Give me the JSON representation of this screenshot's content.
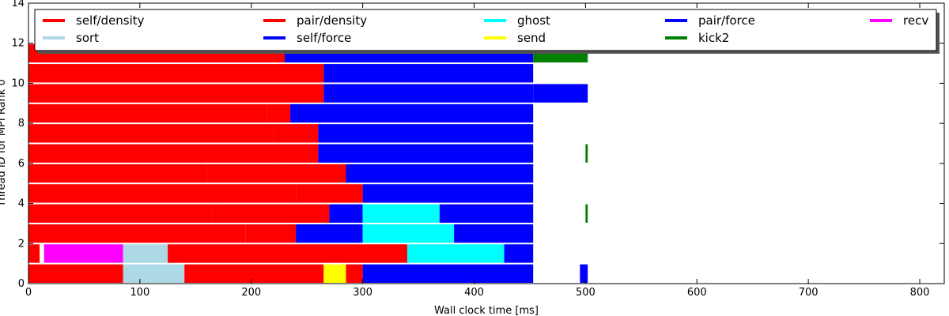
{
  "chart_data": {
    "type": "bar",
    "orientation": "horizontal-timeline",
    "title": "",
    "xlabel": "Wall clock time [ms]",
    "ylabel": "Thread ID for MPI Rank 0",
    "xlim": [
      0,
      822
    ],
    "ylim": [
      0,
      14
    ],
    "xticks": [
      0,
      100,
      200,
      300,
      400,
      500,
      600,
      700,
      800
    ],
    "yticks": [
      0,
      2,
      4,
      6,
      8,
      10,
      12,
      14
    ],
    "grid": false,
    "legend_position": "top",
    "legend": [
      {
        "name": "self/density",
        "color": "#ff0000"
      },
      {
        "name": "sort",
        "color": "#add8e6"
      },
      {
        "name": "pair/density",
        "color": "#ff0000"
      },
      {
        "name": "self/force",
        "color": "#0000ff"
      },
      {
        "name": "ghost",
        "color": "#00ffff"
      },
      {
        "name": "send",
        "color": "#ffff00"
      },
      {
        "name": "pair/force",
        "color": "#0000ff"
      },
      {
        "name": "kick2",
        "color": "#008000"
      },
      {
        "name": "recv",
        "color": "#ff00ff"
      }
    ],
    "threads": [
      {
        "id": 0,
        "segments": [
          {
            "task": "self/density",
            "start": 0,
            "end": 85
          },
          {
            "task": "sort",
            "start": 85,
            "end": 140
          },
          {
            "task": "pair/density",
            "start": 140,
            "end": 265
          },
          {
            "task": "send",
            "start": 265,
            "end": 285
          },
          {
            "task": "pair/density",
            "start": 285,
            "end": 300
          },
          {
            "task": "pair/force",
            "start": 300,
            "end": 453
          },
          {
            "task": "pair/force",
            "start": 495,
            "end": 502
          }
        ]
      },
      {
        "id": 1,
        "segments": [
          {
            "task": "self/density",
            "start": 0,
            "end": 10
          },
          {
            "task": "recv",
            "start": 14,
            "end": 85
          },
          {
            "task": "sort",
            "start": 85,
            "end": 125
          },
          {
            "task": "pair/density",
            "start": 125,
            "end": 340
          },
          {
            "task": "ghost",
            "start": 340,
            "end": 427
          },
          {
            "task": "pair/force",
            "start": 427,
            "end": 453
          }
        ]
      },
      {
        "id": 2,
        "segments": [
          {
            "task": "self/density",
            "start": 0,
            "end": 195
          },
          {
            "task": "pair/density",
            "start": 195,
            "end": 240
          },
          {
            "task": "pair/force",
            "start": 240,
            "end": 300
          },
          {
            "task": "ghost",
            "start": 300,
            "end": 382
          },
          {
            "task": "pair/force",
            "start": 382,
            "end": 453
          }
        ]
      },
      {
        "id": 3,
        "segments": [
          {
            "task": "self/density",
            "start": 0,
            "end": 165
          },
          {
            "task": "pair/density",
            "start": 165,
            "end": 270
          },
          {
            "task": "pair/force",
            "start": 270,
            "end": 300
          },
          {
            "task": "ghost",
            "start": 300,
            "end": 369
          },
          {
            "task": "pair/force",
            "start": 369,
            "end": 453
          },
          {
            "task": "kick2",
            "start": 500,
            "end": 502
          }
        ]
      },
      {
        "id": 4,
        "segments": [
          {
            "task": "self/density",
            "start": 0,
            "end": 240
          },
          {
            "task": "pair/density",
            "start": 240,
            "end": 300
          },
          {
            "task": "pair/force",
            "start": 300,
            "end": 453
          }
        ]
      },
      {
        "id": 5,
        "segments": [
          {
            "task": "self/density",
            "start": 0,
            "end": 160
          },
          {
            "task": "pair/density",
            "start": 160,
            "end": 285
          },
          {
            "task": "pair/force",
            "start": 285,
            "end": 453
          }
        ]
      },
      {
        "id": 6,
        "segments": [
          {
            "task": "self/density",
            "start": 0,
            "end": 225
          },
          {
            "task": "pair/density",
            "start": 225,
            "end": 260
          },
          {
            "task": "pair/force",
            "start": 260,
            "end": 453
          },
          {
            "task": "kick2",
            "start": 500,
            "end": 502
          }
        ]
      },
      {
        "id": 7,
        "segments": [
          {
            "task": "self/density",
            "start": 0,
            "end": 220
          },
          {
            "task": "pair/density",
            "start": 220,
            "end": 260
          },
          {
            "task": "pair/force",
            "start": 260,
            "end": 453
          }
        ]
      },
      {
        "id": 8,
        "segments": [
          {
            "task": "self/density",
            "start": 0,
            "end": 215
          },
          {
            "task": "pair/density",
            "start": 215,
            "end": 235
          },
          {
            "task": "pair/force",
            "start": 235,
            "end": 453
          }
        ]
      },
      {
        "id": 9,
        "segments": [
          {
            "task": "self/density",
            "start": 0,
            "end": 225
          },
          {
            "task": "pair/density",
            "start": 225,
            "end": 265
          },
          {
            "task": "pair/force",
            "start": 265,
            "end": 453
          },
          {
            "task": "pair/force",
            "start": 453,
            "end": 502
          }
        ]
      },
      {
        "id": 10,
        "segments": [
          {
            "task": "self/density",
            "start": 0,
            "end": 230
          },
          {
            "task": "pair/density",
            "start": 230,
            "end": 265
          },
          {
            "task": "pair/force",
            "start": 265,
            "end": 453
          }
        ]
      },
      {
        "id": 11,
        "segments": [
          {
            "task": "self/density",
            "start": 0,
            "end": 220
          },
          {
            "task": "pair/density",
            "start": 220,
            "end": 230
          },
          {
            "task": "pair/force",
            "start": 230,
            "end": 453
          },
          {
            "task": "kick2",
            "start": 453,
            "end": 502
          }
        ]
      }
    ]
  }
}
